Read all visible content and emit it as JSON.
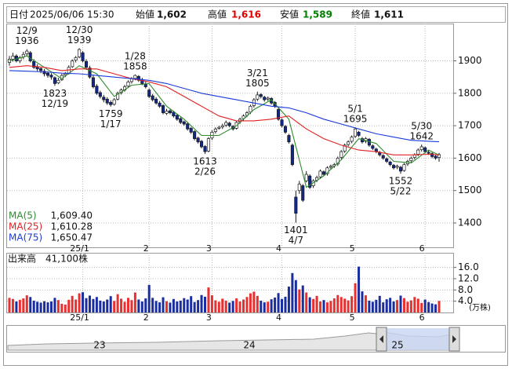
{
  "header": {
    "items": [
      {
        "label": "日付",
        "value": "2025/06/06 15:30"
      },
      {
        "label": "始値",
        "value": "1,602"
      },
      {
        "label": "高値",
        "value": "1,616",
        "color": "#e00000"
      },
      {
        "label": "安値",
        "value": "1,589",
        "color": "#008000"
      },
      {
        "label": "終値",
        "value": "1,611"
      }
    ]
  },
  "chart_data": {
    "type": "candlestick",
    "categories": [
      null,
      null,
      null,
      null,
      null,
      null,
      null,
      null,
      null,
      null,
      null,
      null,
      null,
      null,
      null,
      null,
      null,
      null,
      null,
      null,
      null,
      "25/1",
      null,
      null,
      null,
      null,
      null,
      null,
      null,
      null,
      null,
      null,
      null,
      null,
      null,
      null,
      null,
      null,
      null,
      null,
      "2",
      null,
      null,
      null,
      null,
      null,
      null,
      null,
      null,
      null,
      null,
      null,
      null,
      null,
      null,
      null,
      null,
      null,
      "3",
      null,
      null,
      null,
      null,
      null,
      null,
      null,
      null,
      null,
      null,
      null,
      null,
      null,
      null,
      null,
      null,
      null,
      null,
      null,
      "4",
      null,
      null,
      null,
      null,
      null,
      null,
      null,
      null,
      null,
      null,
      null,
      null,
      null,
      null,
      null,
      null,
      null,
      null,
      null,
      null,
      "5",
      null,
      null,
      null,
      null,
      null,
      null,
      null,
      null,
      null,
      null,
      null,
      null,
      null,
      null,
      null,
      null,
      null,
      null,
      null,
      "6",
      null,
      null,
      null,
      null
    ],
    "ohlc": [
      [
        1895,
        1915,
        1885,
        1905
      ],
      [
        1905,
        1925,
        1898,
        1915
      ],
      [
        1915,
        1920,
        1895,
        1900
      ],
      [
        1900,
        1915,
        1893,
        1910
      ],
      [
        1912,
        1928,
        1905,
        1920
      ],
      [
        1922,
        1936,
        1915,
        1930
      ],
      [
        1925,
        1930,
        1895,
        1900
      ],
      [
        1898,
        1905,
        1875,
        1880
      ],
      [
        1882,
        1890,
        1868,
        1875
      ],
      [
        1876,
        1882,
        1862,
        1870
      ],
      [
        1868,
        1875,
        1852,
        1860
      ],
      [
        1862,
        1868,
        1848,
        1855
      ],
      [
        1856,
        1862,
        1842,
        1850
      ],
      [
        1848,
        1852,
        1823,
        1830
      ],
      [
        1832,
        1848,
        1828,
        1840
      ],
      [
        1842,
        1860,
        1838,
        1855
      ],
      [
        1856,
        1866,
        1850,
        1860
      ],
      [
        1862,
        1886,
        1858,
        1880
      ],
      [
        1882,
        1905,
        1878,
        1900
      ],
      [
        1902,
        1915,
        1895,
        1910
      ],
      [
        1912,
        1939,
        1908,
        1935
      ],
      [
        1925,
        1930,
        1895,
        1900
      ],
      [
        1898,
        1905,
        1872,
        1880
      ],
      [
        1878,
        1885,
        1845,
        1850
      ],
      [
        1848,
        1855,
        1815,
        1820
      ],
      [
        1822,
        1828,
        1795,
        1800
      ],
      [
        1802,
        1808,
        1784,
        1790
      ],
      [
        1788,
        1795,
        1772,
        1780
      ],
      [
        1782,
        1788,
        1764,
        1770
      ],
      [
        1772,
        1778,
        1759,
        1765
      ],
      [
        1766,
        1785,
        1762,
        1780
      ],
      [
        1782,
        1805,
        1778,
        1800
      ],
      [
        1802,
        1815,
        1796,
        1810
      ],
      [
        1810,
        1826,
        1805,
        1820
      ],
      [
        1822,
        1840,
        1816,
        1835
      ],
      [
        1836,
        1850,
        1830,
        1845
      ],
      [
        1846,
        1858,
        1840,
        1855
      ],
      [
        1852,
        1856,
        1835,
        1840
      ],
      [
        1842,
        1848,
        1825,
        1830
      ],
      [
        1828,
        1835,
        1815,
        1820
      ],
      [
        1810,
        1815,
        1785,
        1790
      ],
      [
        1792,
        1798,
        1775,
        1780
      ],
      [
        1782,
        1788,
        1765,
        1770
      ],
      [
        1770,
        1776,
        1755,
        1760
      ],
      [
        1762,
        1766,
        1735,
        1740
      ],
      [
        1738,
        1752,
        1733,
        1745
      ],
      [
        1746,
        1750,
        1735,
        1740
      ],
      [
        1742,
        1746,
        1725,
        1730
      ],
      [
        1732,
        1736,
        1715,
        1720
      ],
      [
        1722,
        1726,
        1705,
        1710
      ],
      [
        1712,
        1716,
        1700,
        1705
      ],
      [
        1706,
        1710,
        1685,
        1690
      ],
      [
        1692,
        1696,
        1675,
        1680
      ],
      [
        1682,
        1686,
        1655,
        1660
      ],
      [
        1662,
        1666,
        1645,
        1650
      ],
      [
        1652,
        1656,
        1630,
        1635
      ],
      [
        1636,
        1640,
        1613,
        1620
      ],
      [
        1622,
        1665,
        1618,
        1660
      ],
      [
        1662,
        1686,
        1656,
        1680
      ],
      [
        1682,
        1695,
        1676,
        1690
      ],
      [
        1692,
        1700,
        1688,
        1695
      ],
      [
        1696,
        1706,
        1690,
        1700
      ],
      [
        1702,
        1716,
        1696,
        1710
      ],
      [
        1708,
        1712,
        1695,
        1700
      ],
      [
        1698,
        1702,
        1685,
        1690
      ],
      [
        1692,
        1715,
        1688,
        1710
      ],
      [
        1712,
        1725,
        1706,
        1720
      ],
      [
        1722,
        1735,
        1716,
        1730
      ],
      [
        1732,
        1745,
        1726,
        1740
      ],
      [
        1742,
        1765,
        1736,
        1760
      ],
      [
        1762,
        1785,
        1756,
        1780
      ],
      [
        1782,
        1805,
        1776,
        1795
      ],
      [
        1796,
        1800,
        1784,
        1790
      ],
      [
        1788,
        1792,
        1774,
        1780
      ],
      [
        1782,
        1790,
        1776,
        1785
      ],
      [
        1784,
        1788,
        1765,
        1770
      ],
      [
        1772,
        1776,
        1755,
        1760
      ],
      [
        1750,
        1755,
        1715,
        1720
      ],
      [
        1718,
        1722,
        1695,
        1700
      ],
      [
        1698,
        1702,
        1675,
        1680
      ],
      [
        1670,
        1675,
        1645,
        1650
      ],
      [
        1640,
        1645,
        1575,
        1580
      ],
      [
        1480,
        1500,
        1401,
        1430
      ],
      [
        1500,
        1530,
        1490,
        1520
      ],
      [
        1515,
        1520,
        1465,
        1470
      ],
      [
        1530,
        1560,
        1525,
        1550
      ],
      [
        1545,
        1550,
        1505,
        1510
      ],
      [
        1515,
        1535,
        1508,
        1530
      ],
      [
        1532,
        1546,
        1526,
        1540
      ],
      [
        1542,
        1565,
        1536,
        1560
      ],
      [
        1558,
        1562,
        1545,
        1550
      ],
      [
        1552,
        1575,
        1546,
        1570
      ],
      [
        1572,
        1580,
        1566,
        1575
      ],
      [
        1576,
        1585,
        1570,
        1580
      ],
      [
        1582,
        1605,
        1576,
        1600
      ],
      [
        1602,
        1625,
        1596,
        1620
      ],
      [
        1622,
        1645,
        1616,
        1640
      ],
      [
        1642,
        1655,
        1636,
        1650
      ],
      [
        1652,
        1670,
        1646,
        1665
      ],
      [
        1667,
        1695,
        1662,
        1690
      ],
      [
        1680,
        1684,
        1665,
        1670
      ],
      [
        1660,
        1665,
        1645,
        1650
      ],
      [
        1652,
        1665,
        1646,
        1660
      ],
      [
        1658,
        1662,
        1635,
        1640
      ],
      [
        1638,
        1642,
        1625,
        1630
      ],
      [
        1628,
        1632,
        1615,
        1620
      ],
      [
        1618,
        1622,
        1605,
        1610
      ],
      [
        1608,
        1612,
        1595,
        1600
      ],
      [
        1598,
        1602,
        1585,
        1590
      ],
      [
        1588,
        1592,
        1575,
        1580
      ],
      [
        1578,
        1582,
        1565,
        1570
      ],
      [
        1572,
        1580,
        1566,
        1575
      ],
      [
        1572,
        1576,
        1552,
        1560
      ],
      [
        1562,
        1585,
        1558,
        1580
      ],
      [
        1582,
        1595,
        1576,
        1590
      ],
      [
        1592,
        1605,
        1586,
        1600
      ],
      [
        1602,
        1615,
        1596,
        1610
      ],
      [
        1612,
        1630,
        1606,
        1625
      ],
      [
        1626,
        1642,
        1620,
        1635
      ],
      [
        1632,
        1636,
        1615,
        1620
      ],
      [
        1618,
        1624,
        1610,
        1615
      ],
      [
        1614,
        1618,
        1600,
        1605
      ],
      [
        1606,
        1610,
        1595,
        1600
      ],
      [
        1602,
        1616,
        1589,
        1611
      ]
    ],
    "up_color": "#ffffff",
    "down_color": "#10288c",
    "edge_color": "#1a1a1a",
    "ylim": [
      1325,
      2015
    ],
    "yticks": [
      1400,
      1500,
      1600,
      1700,
      1800,
      1900
    ],
    "grid": true,
    "series": [
      {
        "name": "MA(5)",
        "color": "#2e8b2e",
        "value_label": "1,609.40",
        "x": [
          0,
          5,
          10,
          15,
          20,
          25,
          30,
          35,
          40,
          45,
          50,
          55,
          60,
          65,
          70,
          75,
          80,
          85,
          90,
          95,
          100,
          105,
          110,
          115,
          120,
          123
        ],
        "values": [
          1900,
          1915,
          1880,
          1845,
          1885,
          1860,
          1790,
          1825,
          1830,
          1760,
          1720,
          1670,
          1670,
          1700,
          1750,
          1780,
          1720,
          1510,
          1545,
          1595,
          1660,
          1645,
          1590,
          1585,
          1625,
          1609.4
        ]
      },
      {
        "name": "MA(25)",
        "color": "#e02020",
        "value_label": "1,610.28",
        "x": [
          0,
          5,
          10,
          15,
          20,
          25,
          30,
          35,
          40,
          45,
          50,
          55,
          60,
          65,
          70,
          75,
          80,
          85,
          90,
          95,
          100,
          105,
          110,
          115,
          120,
          123
        ],
        "values": [
          1880,
          1885,
          1880,
          1870,
          1875,
          1875,
          1860,
          1845,
          1835,
          1820,
          1790,
          1760,
          1730,
          1715,
          1715,
          1720,
          1730,
          1690,
          1660,
          1640,
          1625,
          1620,
          1610,
          1610,
          1612,
          1610.28
        ]
      },
      {
        "name": "MA(75)",
        "color": "#1a3ad8",
        "value_label": "1,650.47",
        "x": [
          0,
          5,
          10,
          15,
          20,
          25,
          30,
          35,
          40,
          45,
          50,
          55,
          60,
          65,
          70,
          75,
          80,
          85,
          90,
          95,
          100,
          105,
          110,
          115,
          120,
          123
        ],
        "values": [
          1870,
          1868,
          1866,
          1862,
          1860,
          1855,
          1850,
          1845,
          1840,
          1830,
          1815,
          1800,
          1790,
          1780,
          1770,
          1760,
          1755,
          1740,
          1720,
          1705,
          1690,
          1675,
          1665,
          1655,
          1652,
          1650.47
        ]
      }
    ],
    "annotations": [
      {
        "date": "12/9",
        "price": 1936,
        "index": 5,
        "pos": "above"
      },
      {
        "date": "12/19",
        "price": 1823,
        "index": 13,
        "pos": "below"
      },
      {
        "date": "12/30",
        "price": 1939,
        "index": 20,
        "pos": "above"
      },
      {
        "date": "1/17",
        "price": 1759,
        "index": 29,
        "pos": "below"
      },
      {
        "date": "1/28",
        "price": 1858,
        "index": 36,
        "pos": "above"
      },
      {
        "date": "2/26",
        "price": 1613,
        "index": 56,
        "pos": "below"
      },
      {
        "date": "3/21",
        "price": 1805,
        "index": 71,
        "pos": "above"
      },
      {
        "date": "4/7",
        "price": 1401,
        "index": 82,
        "pos": "below"
      },
      {
        "date": "5/1",
        "price": 1695,
        "index": 99,
        "pos": "above"
      },
      {
        "date": "5/22",
        "price": 1552,
        "index": 112,
        "pos": "below"
      },
      {
        "date": "5/30",
        "price": 1642,
        "index": 118,
        "pos": "above"
      }
    ],
    "volume": {
      "title": "出来高",
      "total_label": "41,100株",
      "unit": "(万株)",
      "up_color": "#e83030",
      "down_color": "#1a2ea0",
      "values": [
        5.2,
        4.8,
        3.9,
        4.5,
        5.0,
        6.1,
        5.5,
        4.2,
        3.8,
        3.5,
        4.0,
        3.6,
        3.9,
        5.2,
        4.4,
        3.1,
        2.8,
        4.5,
        5.9,
        4.6,
        6.8,
        7.2,
        5.1,
        6.0,
        4.8,
        5.5,
        4.2,
        3.9,
        4.6,
        5.8,
        4.1,
        6.5,
        4.9,
        3.8,
        5.2,
        4.4,
        7.1,
        4.6,
        3.9,
        5.0,
        9.8,
        5.2,
        4.1,
        3.6,
        5.4,
        4.0,
        3.5,
        4.8,
        3.9,
        4.2,
        5.1,
        4.6,
        5.8,
        3.7,
        4.4,
        6.2,
        5.6,
        8.9,
        6.1,
        4.3,
        3.8,
        4.9,
        4.2,
        3.5,
        4.1,
        5.0,
        3.9,
        4.6,
        5.5,
        6.8,
        7.4,
        5.9,
        4.2,
        3.6,
        3.8,
        4.7,
        5.3,
        6.9,
        4.8,
        5.6,
        9.2,
        14.0,
        11.5,
        8.2,
        9.6,
        7.1,
        5.4,
        4.8,
        5.9,
        3.9,
        4.4,
        3.6,
        4.1,
        5.0,
        6.2,
        5.5,
        4.9,
        4.3,
        5.8,
        10.4,
        16.3,
        7.5,
        6.1,
        4.2,
        3.8,
        4.5,
        5.9,
        3.6,
        4.7,
        5.2,
        3.9,
        4.4,
        6.0,
        5.1,
        3.8,
        4.3,
        5.5,
        4.9,
        3.4,
        4.6,
        3.7,
        3.2,
        2.9,
        4.11
      ],
      "ylim": [
        0,
        21.2
      ],
      "yticks": [
        {
          "value": 4,
          "label": "4.0"
        },
        {
          "value": 8,
          "label": "8.0"
        },
        {
          "value": 12,
          "label": "12.0"
        },
        {
          "value": 16,
          "label": "16.0"
        }
      ]
    }
  },
  "navigator": {
    "labels": [
      "23",
      "24",
      "25"
    ]
  }
}
